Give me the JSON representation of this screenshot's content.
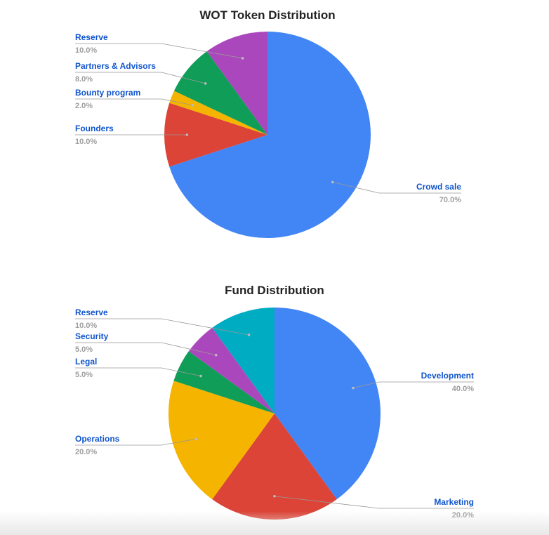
{
  "chart_data": [
    {
      "type": "pie",
      "title": "WOT Token Distribution",
      "categories": [
        "Crowd sale",
        "Founders",
        "Bounty program",
        "Partners & Advisors",
        "Reserve"
      ],
      "values": [
        70,
        10,
        2,
        8,
        10
      ],
      "value_labels": [
        "70.0%",
        "10.0%",
        "2.0%",
        "8.0%",
        "10.0%"
      ],
      "colors": [
        "#4285f4",
        "#db4437",
        "#f4b400",
        "#0f9d58",
        "#ab47bc"
      ]
    },
    {
      "type": "pie",
      "title": "Fund Distribution",
      "categories": [
        "Development",
        "Marketing",
        "Operations",
        "Legal",
        "Security",
        "Reserve"
      ],
      "values": [
        40,
        20,
        20,
        5,
        5,
        10
      ],
      "value_labels": [
        "40.0%",
        "20.0%",
        "20.0%",
        "5.0%",
        "5.0%",
        "10.0%"
      ],
      "colors": [
        "#4285f4",
        "#db4437",
        "#f4b400",
        "#0f9d58",
        "#ab47bc",
        "#00acc1"
      ]
    }
  ]
}
